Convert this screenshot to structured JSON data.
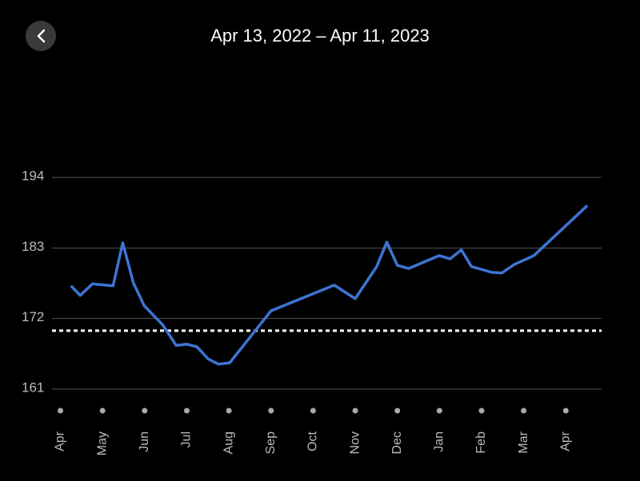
{
  "header": {
    "title": "Apr 13, 2022 – Apr 11, 2023"
  },
  "chart_data": {
    "type": "line",
    "x": [
      0.25,
      0.47,
      0.76,
      1.25,
      1.48,
      1.73,
      1.99,
      2.43,
      2.75,
      3.0,
      3.24,
      3.51,
      3.75,
      4.02,
      5.0,
      6.5,
      7.0,
      7.51,
      7.75,
      8.0,
      8.27,
      8.99,
      9.25,
      9.52,
      9.76,
      10.24,
      10.48,
      10.77,
      11.24,
      12.51
    ],
    "series": [
      {
        "color": "#3d74d4",
        "values": [
          177.1,
          175.6,
          177.4,
          177.1,
          183.8,
          177.6,
          174.0,
          171.0,
          167.8,
          168.0,
          167.6,
          165.7,
          164.9,
          165.1,
          173.2,
          177.2,
          175.1,
          180.1,
          183.9,
          180.3,
          179.8,
          181.8,
          181.3,
          182.7,
          180.1,
          179.2,
          179.1,
          180.4,
          181.8,
          189.6
        ]
      }
    ],
    "xlim": [
      -0.2,
      12.85
    ],
    "xticks": [
      {
        "value": 0,
        "label": "Apr"
      },
      {
        "value": 1,
        "label": "May"
      },
      {
        "value": 2,
        "label": "Jun"
      },
      {
        "value": 3,
        "label": "Jul"
      },
      {
        "value": 4,
        "label": "Aug"
      },
      {
        "value": 5,
        "label": "Sep"
      },
      {
        "value": 6,
        "label": "Oct"
      },
      {
        "value": 7,
        "label": "Nov"
      },
      {
        "value": 8,
        "label": "Dec"
      },
      {
        "value": 9,
        "label": "Jan"
      },
      {
        "value": 10,
        "label": "Feb"
      },
      {
        "value": 11,
        "label": "Mar"
      },
      {
        "value": 12,
        "label": "Apr"
      }
    ],
    "ylim": [
      161,
      194
    ],
    "yticks": [
      161,
      172,
      183,
      194
    ],
    "grid": true,
    "target": 170.1
  }
}
